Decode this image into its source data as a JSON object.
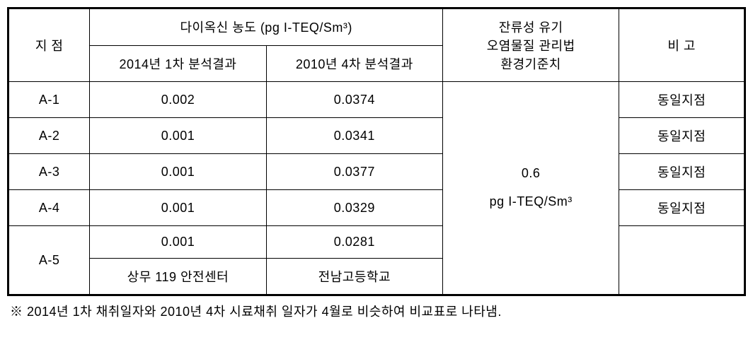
{
  "table": {
    "headers": {
      "point": "지 점",
      "concentration_group": "다이옥신 농도 (pg I-TEQ/Sm³)",
      "result_2014": "2014년 1차 분석결과",
      "result_2010": "2010년 4차 분석결과",
      "standard": "잔류성 유기\n오염물질 관리법\n환경기준치",
      "note": "비 고"
    },
    "standard_value_line1": "0.6",
    "standard_value_line2": "pg I-TEQ/Sm³",
    "rows": [
      {
        "point": "A-1",
        "v2014": "0.002",
        "v2010": "0.0374",
        "note": "동일지점"
      },
      {
        "point": "A-2",
        "v2014": "0.001",
        "v2010": "0.0341",
        "note": "동일지점"
      },
      {
        "point": "A-3",
        "v2014": "0.001",
        "v2010": "0.0377",
        "note": "동일지점"
      },
      {
        "point": "A-4",
        "v2014": "0.001",
        "v2010": "0.0329",
        "note": "동일지점"
      }
    ],
    "row_a5": {
      "point": "A-5",
      "v2014": "0.001",
      "v2010": "0.0281",
      "loc2014": "상무 119 안전센터",
      "loc2010": "전남고등학교",
      "note": ""
    },
    "column_widths": {
      "point": "11%",
      "data1": "24%",
      "data2": "24%",
      "std": "24%",
      "note": "17%"
    },
    "colors": {
      "border": "#000000",
      "background": "#ffffff",
      "text": "#000000"
    },
    "font": {
      "family": "Malgun Gothic",
      "size_pt": 14
    }
  },
  "footnote": "※ 2014년 1차 채취일자와 2010년 4차 시료채취 일자가 4월로 비슷하여 비교표로 나타냄."
}
